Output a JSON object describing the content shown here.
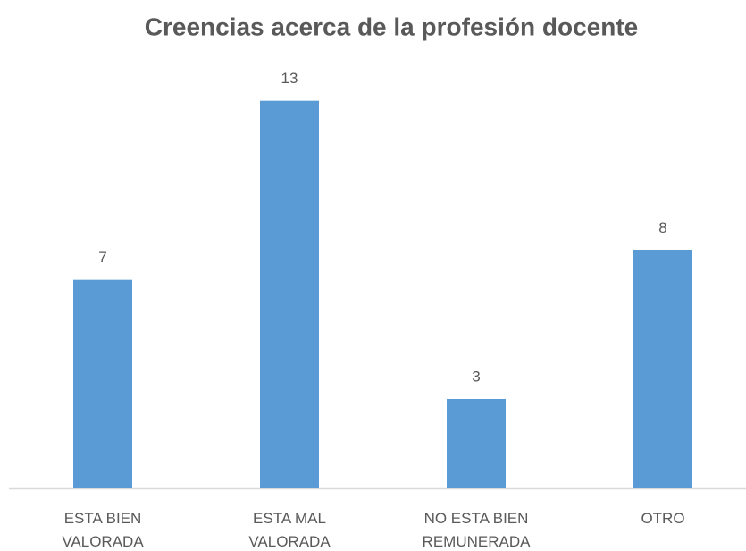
{
  "chart_data": {
    "type": "bar",
    "title": "Creencias acerca de la profesión docente",
    "categories": [
      "ESTA BIEN VALORADA",
      "ESTA MAL VALORADA",
      "NO ESTA BIEN REMUNERADA",
      "OTRO"
    ],
    "values": [
      7,
      13,
      3,
      8
    ],
    "color": "#5b9bd5",
    "ylim": [
      0,
      15
    ],
    "grid": false
  }
}
